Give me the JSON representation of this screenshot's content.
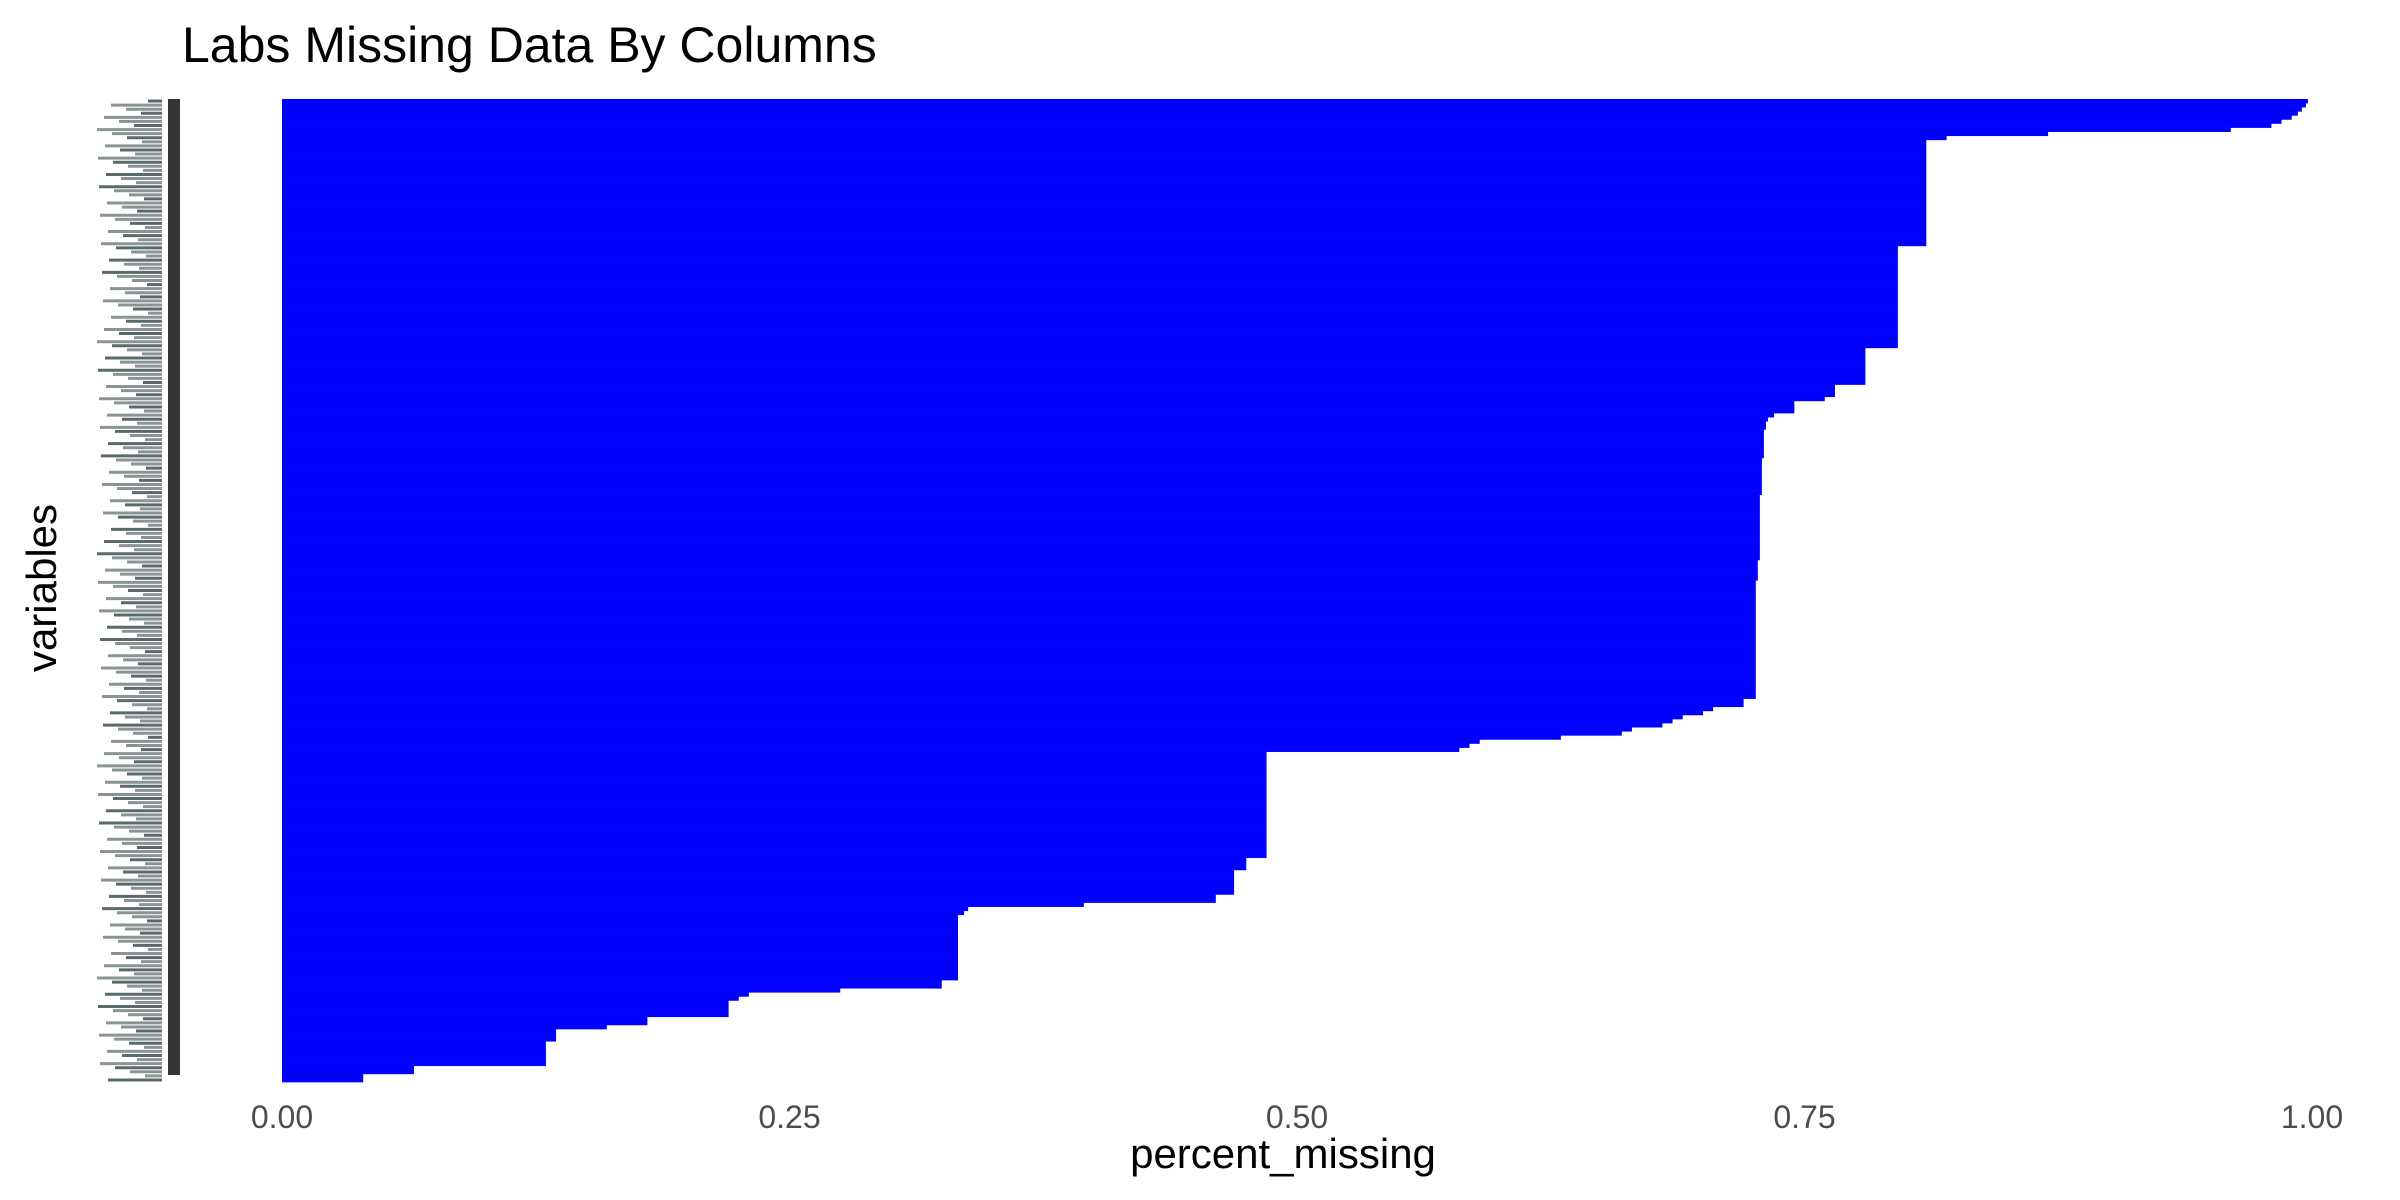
{
  "chart_data": {
    "type": "bar",
    "orientation": "horizontal",
    "title": "Labs Missing Data By Columns",
    "xlabel": "percent_missing",
    "ylabel": "variables",
    "xlim": [
      0,
      1
    ],
    "x_ticks": [
      "0.00",
      "0.25",
      "0.50",
      "0.75",
      "1.00"
    ],
    "x_tick_values": [
      0,
      0.25,
      0.5,
      0.75,
      1.0
    ],
    "bar_color": "#0000ff",
    "grid": false,
    "legend": "none",
    "num_variables": 250,
    "category_labels_note": "Variable names on the y axis are overplotted and illegible in the original image.",
    "values_descending": [
      0.998,
      0.997,
      0.995,
      0.993,
      0.99,
      0.985,
      0.98,
      0.96,
      0.87,
      0.82,
      0.81,
      0.81,
      0.81,
      0.81,
      0.81,
      0.81,
      0.81,
      0.81,
      0.81,
      0.81,
      0.81,
      0.81,
      0.81,
      0.81,
      0.81,
      0.81,
      0.81,
      0.81,
      0.81,
      0.81,
      0.81,
      0.81,
      0.81,
      0.81,
      0.81,
      0.81,
      0.796,
      0.796,
      0.796,
      0.796,
      0.796,
      0.796,
      0.796,
      0.796,
      0.796,
      0.796,
      0.796,
      0.796,
      0.796,
      0.796,
      0.796,
      0.796,
      0.796,
      0.796,
      0.796,
      0.796,
      0.796,
      0.796,
      0.796,
      0.796,
      0.796,
      0.78,
      0.78,
      0.78,
      0.78,
      0.78,
      0.78,
      0.78,
      0.78,
      0.78,
      0.765,
      0.765,
      0.765,
      0.76,
      0.745,
      0.745,
      0.745,
      0.735,
      0.732,
      0.731,
      0.731,
      0.73,
      0.73,
      0.73,
      0.73,
      0.73,
      0.73,
      0.73,
      0.729,
      0.729,
      0.729,
      0.729,
      0.729,
      0.729,
      0.729,
      0.729,
      0.729,
      0.728,
      0.728,
      0.728,
      0.728,
      0.728,
      0.728,
      0.728,
      0.728,
      0.728,
      0.728,
      0.728,
      0.728,
      0.728,
      0.728,
      0.728,
      0.728,
      0.727,
      0.727,
      0.727,
      0.727,
      0.727,
      0.726,
      0.726,
      0.726,
      0.726,
      0.726,
      0.726,
      0.726,
      0.726,
      0.726,
      0.726,
      0.726,
      0.726,
      0.726,
      0.726,
      0.726,
      0.726,
      0.726,
      0.726,
      0.726,
      0.726,
      0.726,
      0.726,
      0.726,
      0.726,
      0.726,
      0.726,
      0.726,
      0.726,
      0.726,
      0.72,
      0.72,
      0.705,
      0.7,
      0.69,
      0.685,
      0.68,
      0.665,
      0.66,
      0.63,
      0.59,
      0.585,
      0.58,
      0.485,
      0.485,
      0.485,
      0.485,
      0.485,
      0.485,
      0.485,
      0.485,
      0.485,
      0.485,
      0.485,
      0.485,
      0.485,
      0.485,
      0.485,
      0.485,
      0.485,
      0.485,
      0.485,
      0.485,
      0.485,
      0.485,
      0.485,
      0.485,
      0.485,
      0.485,
      0.475,
      0.475,
      0.475,
      0.469,
      0.469,
      0.469,
      0.469,
      0.469,
      0.469,
      0.46,
      0.46,
      0.395,
      0.338,
      0.336,
      0.333,
      0.333,
      0.333,
      0.333,
      0.333,
      0.333,
      0.333,
      0.333,
      0.333,
      0.333,
      0.333,
      0.333,
      0.333,
      0.333,
      0.333,
      0.333,
      0.325,
      0.325,
      0.275,
      0.23,
      0.225,
      0.22,
      0.22,
      0.22,
      0.22,
      0.18,
      0.18,
      0.16,
      0.135,
      0.135,
      0.135,
      0.13,
      0.13,
      0.13,
      0.13,
      0.13,
      0.13,
      0.065,
      0.065,
      0.04,
      0.04
    ]
  }
}
